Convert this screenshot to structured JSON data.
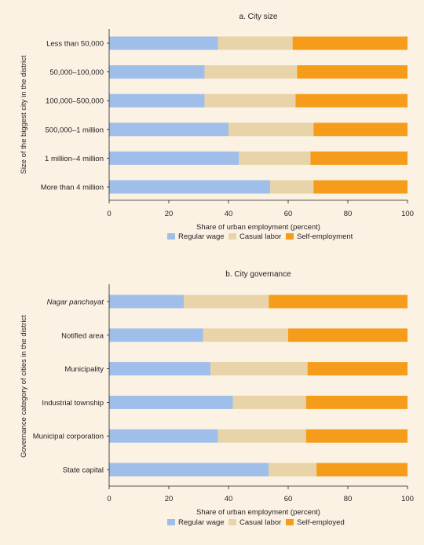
{
  "colors": {
    "background": "#fbf2e3",
    "axis": "#231f20"
  },
  "chart_data": [
    {
      "type": "bar",
      "orientation": "horizontal",
      "stacked": true,
      "title": "a. City size",
      "xlabel": "Share of urban employment (percent)",
      "ylabel": "Size of the biggest city in the district",
      "xlim": [
        0,
        100
      ],
      "xticks": [
        "0",
        "20",
        "40",
        "60",
        "80",
        "100"
      ],
      "grid": false,
      "legend_position": "bottom",
      "categories": [
        "Less than 50,000",
        "50,000–100,000",
        "100,000–500,000",
        "500,000–1 million",
        "1 million–4 million",
        "More than 4 million"
      ],
      "series": [
        {
          "name": "Regular wage",
          "color": "#9fbfea",
          "values": [
            36.5,
            32,
            32,
            40,
            43.5,
            54
          ]
        },
        {
          "name": "Casual labor",
          "color": "#e8d4a8",
          "values": [
            25,
            31,
            30.5,
            28.5,
            24,
            14.5
          ]
        },
        {
          "name": "Self-employment",
          "color": "#f59d1b",
          "values": [
            38.5,
            37,
            37.5,
            31.5,
            32.5,
            31.5
          ]
        }
      ]
    },
    {
      "type": "bar",
      "orientation": "horizontal",
      "stacked": true,
      "title": "b. City governance",
      "xlabel": "Share of urban employment (percent)",
      "ylabel": "Governance category of cities in the district",
      "xlim": [
        0,
        100
      ],
      "xticks": [
        "0",
        "20",
        "40",
        "60",
        "80",
        "100"
      ],
      "grid": false,
      "legend_position": "bottom",
      "italic_categories": [
        "Nagar panchayat"
      ],
      "categories": [
        "Nagar panchayat",
        "Notified area",
        "Municipality",
        "Industrial township",
        "Municipal corporation",
        "State capital"
      ],
      "series": [
        {
          "name": "Regular wage",
          "color": "#9fbfea",
          "values": [
            25,
            31.5,
            34,
            41.5,
            36.5,
            53.5
          ]
        },
        {
          "name": "Casual labor",
          "color": "#e8d4a8",
          "values": [
            28.5,
            28.5,
            32.5,
            24.5,
            29.5,
            16
          ]
        },
        {
          "name": "Self-employed",
          "color": "#f59d1b",
          "values": [
            46.5,
            40,
            33.5,
            34,
            34,
            30.5
          ]
        }
      ]
    }
  ]
}
